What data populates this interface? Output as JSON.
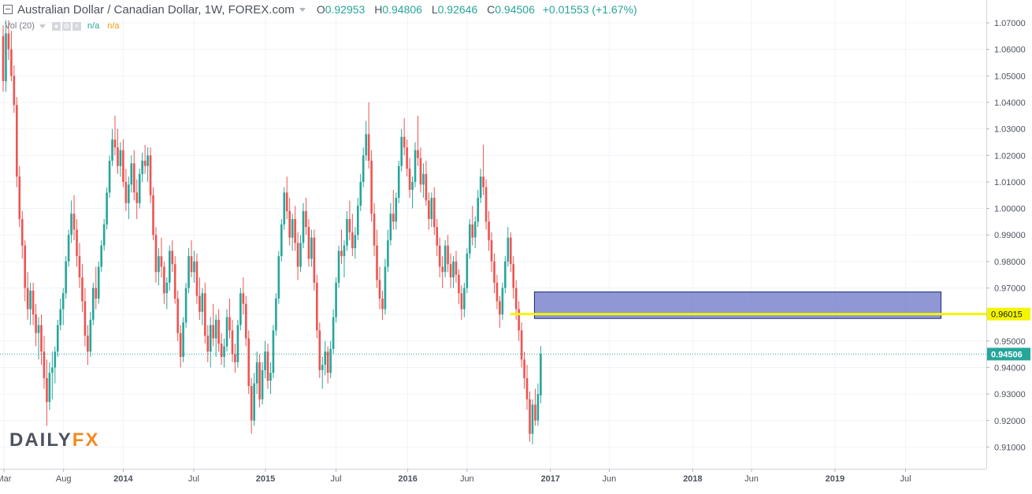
{
  "header": {
    "symbol_title": "Australian Dollar / Canadian Dollar, 1W, FOREX.com",
    "open_label": "O",
    "open_value": "0.92953",
    "high_label": "H",
    "high_value": "0.94806",
    "low_label": "L",
    "low_value": "0.92646",
    "close_label": "C",
    "close_value": "0.94506",
    "change": "+0.01553 (+1.67%)"
  },
  "volume_legend": {
    "label": "Vol (20)",
    "value1": "n/a",
    "value2": "n/a"
  },
  "watermark": "DAILYFX",
  "colors": {
    "up": "#26a69a",
    "down": "#ef5350",
    "support_line": "#f5f500",
    "zone_fill": "#6a74c6",
    "price_label": "#26a69a"
  },
  "chart_data": {
    "type": "candlestick",
    "title": "Australian Dollar / Canadian Dollar, 1W, FOREX.com",
    "ylim": [
      0.9,
      1.072
    ],
    "y_ticks": [
      "1.07000",
      "1.06000",
      "1.05000",
      "1.04000",
      "1.03000",
      "1.02000",
      "1.01000",
      "1.00000",
      "0.99000",
      "0.98000",
      "0.97000",
      "0.96000",
      "0.95000",
      "0.94000",
      "0.93000",
      "0.92000",
      "0.91000"
    ],
    "x_ticks": [
      "Mar",
      "Aug",
      "2014",
      "Jul",
      "2015",
      "Jul",
      "2016",
      "Jun",
      "2017",
      "Jun",
      "2018",
      "Jun",
      "2019",
      "Jul"
    ],
    "x_tick_dates": [
      "2013-03-01",
      "2013-08-01",
      "2014-01-01",
      "2014-07-01",
      "2015-01-01",
      "2015-07-01",
      "2016-01-01",
      "2016-06-01",
      "2017-01-01",
      "2017-06-01",
      "2018-01-01",
      "2018-06-01",
      "2019-01-01",
      "2019-07-01"
    ],
    "x_start": "2013-02-25",
    "grid": true,
    "candles": [
      [
        1.065,
        1.069,
        1.044,
        1.048
      ],
      [
        1.048,
        1.071,
        1.044,
        1.066
      ],
      [
        1.066,
        1.071,
        1.056,
        1.06
      ],
      [
        1.06,
        1.067,
        1.048,
        1.05
      ],
      [
        1.05,
        1.054,
        1.036,
        1.039
      ],
      [
        1.039,
        1.042,
        1.008,
        1.012
      ],
      [
        1.012,
        1.016,
        0.993,
        0.996
      ],
      [
        0.996,
        0.999,
        0.981,
        0.986
      ],
      [
        0.986,
        0.988,
        0.965,
        0.97
      ],
      [
        0.97,
        0.976,
        0.958,
        0.962
      ],
      [
        0.962,
        0.972,
        0.956,
        0.969
      ],
      [
        0.969,
        0.972,
        0.956,
        0.96
      ],
      [
        0.96,
        0.964,
        0.948,
        0.953
      ],
      [
        0.953,
        0.959,
        0.943,
        0.956
      ],
      [
        0.956,
        0.96,
        0.941,
        0.946
      ],
      [
        0.946,
        0.952,
        0.932,
        0.936
      ],
      [
        0.936,
        0.943,
        0.918,
        0.927
      ],
      [
        0.927,
        0.942,
        0.924,
        0.938
      ],
      [
        0.938,
        0.946,
        0.928,
        0.94
      ],
      [
        0.94,
        0.948,
        0.934,
        0.946
      ],
      [
        0.946,
        0.958,
        0.944,
        0.956
      ],
      [
        0.956,
        0.966,
        0.954,
        0.962
      ],
      [
        0.962,
        0.97,
        0.956,
        0.968
      ],
      [
        0.968,
        0.982,
        0.966,
        0.98
      ],
      [
        0.98,
        0.992,
        0.978,
        0.99
      ],
      [
        0.99,
        1.003,
        0.987,
        0.998
      ],
      [
        0.998,
        1.005,
        0.988,
        0.992
      ],
      [
        0.992,
        0.996,
        0.978,
        0.982
      ],
      [
        0.982,
        0.987,
        0.97,
        0.974
      ],
      [
        0.974,
        0.979,
        0.961,
        0.965
      ],
      [
        0.965,
        0.97,
        0.948,
        0.952
      ],
      [
        0.952,
        0.956,
        0.941,
        0.946
      ],
      [
        0.946,
        0.961,
        0.944,
        0.958
      ],
      [
        0.958,
        0.972,
        0.956,
        0.97
      ],
      [
        0.97,
        0.978,
        0.962,
        0.966
      ],
      [
        0.966,
        0.98,
        0.964,
        0.978
      ],
      [
        0.978,
        0.988,
        0.976,
        0.986
      ],
      [
        0.986,
        0.996,
        0.984,
        0.994
      ],
      [
        0.994,
        1.008,
        0.992,
        1.006
      ],
      [
        1.006,
        1.02,
        1.004,
        1.018
      ],
      [
        1.018,
        1.03,
        1.016,
        1.026
      ],
      [
        1.026,
        1.035,
        1.02,
        1.023
      ],
      [
        1.023,
        1.03,
        1.013,
        1.016
      ],
      [
        1.016,
        1.025,
        1.012,
        1.022
      ],
      [
        1.022,
        1.026,
        1.008,
        1.01
      ],
      [
        1.01,
        1.015,
        0.999,
        1.002
      ],
      [
        1.002,
        1.012,
        0.996,
        1.009
      ],
      [
        1.009,
        1.02,
        1.006,
        1.017
      ],
      [
        1.017,
        1.022,
        1.003,
        1.006
      ],
      [
        1.006,
        1.011,
        0.996,
        1.002
      ],
      [
        1.002,
        1.015,
        1.0,
        1.013
      ],
      [
        1.013,
        1.021,
        1.01,
        1.018
      ],
      [
        1.018,
        1.024,
        1.013,
        1.016
      ],
      [
        1.016,
        1.023,
        1.01,
        1.02
      ],
      [
        1.02,
        1.023,
        1.002,
        1.005
      ],
      [
        1.005,
        1.008,
        0.988,
        0.99
      ],
      [
        0.99,
        0.993,
        0.972,
        0.976
      ],
      [
        0.976,
        0.985,
        0.971,
        0.982
      ],
      [
        0.982,
        0.989,
        0.974,
        0.978
      ],
      [
        0.978,
        0.98,
        0.964,
        0.968
      ],
      [
        0.968,
        0.974,
        0.962,
        0.972
      ],
      [
        0.972,
        0.986,
        0.969,
        0.984
      ],
      [
        0.984,
        0.988,
        0.976,
        0.979
      ],
      [
        0.979,
        0.982,
        0.964,
        0.966
      ],
      [
        0.966,
        0.969,
        0.95,
        0.953
      ],
      [
        0.953,
        0.956,
        0.94,
        0.944
      ],
      [
        0.944,
        0.959,
        0.942,
        0.957
      ],
      [
        0.957,
        0.972,
        0.955,
        0.97
      ],
      [
        0.97,
        0.985,
        0.968,
        0.982
      ],
      [
        0.982,
        0.988,
        0.974,
        0.976
      ],
      [
        0.976,
        0.984,
        0.972,
        0.98
      ],
      [
        0.98,
        0.983,
        0.964,
        0.967
      ],
      [
        0.967,
        0.974,
        0.958,
        0.961
      ],
      [
        0.961,
        0.97,
        0.956,
        0.968
      ],
      [
        0.968,
        0.972,
        0.949,
        0.952
      ],
      [
        0.952,
        0.956,
        0.942,
        0.946
      ],
      [
        0.946,
        0.959,
        0.94,
        0.956
      ],
      [
        0.956,
        0.964,
        0.948,
        0.951
      ],
      [
        0.951,
        0.96,
        0.944,
        0.958
      ],
      [
        0.958,
        0.962,
        0.946,
        0.949
      ],
      [
        0.949,
        0.953,
        0.941,
        0.944
      ],
      [
        0.944,
        0.951,
        0.94,
        0.948
      ],
      [
        0.948,
        0.962,
        0.946,
        0.959
      ],
      [
        0.959,
        0.966,
        0.951,
        0.954
      ],
      [
        0.954,
        0.958,
        0.942,
        0.945
      ],
      [
        0.945,
        0.949,
        0.938,
        0.942
      ],
      [
        0.942,
        0.958,
        0.94,
        0.956
      ],
      [
        0.956,
        0.97,
        0.954,
        0.968
      ],
      [
        0.968,
        0.974,
        0.96,
        0.964
      ],
      [
        0.964,
        0.967,
        0.948,
        0.951
      ],
      [
        0.951,
        0.954,
        0.93,
        0.933
      ],
      [
        0.933,
        0.936,
        0.915,
        0.92
      ],
      [
        0.92,
        0.938,
        0.918,
        0.934
      ],
      [
        0.934,
        0.946,
        0.93,
        0.942
      ],
      [
        0.942,
        0.945,
        0.925,
        0.928
      ],
      [
        0.928,
        0.942,
        0.926,
        0.939
      ],
      [
        0.939,
        0.95,
        0.936,
        0.946
      ],
      [
        0.946,
        0.949,
        0.932,
        0.935
      ],
      [
        0.935,
        0.942,
        0.93,
        0.938
      ],
      [
        0.938,
        0.956,
        0.936,
        0.954
      ],
      [
        0.954,
        0.968,
        0.952,
        0.966
      ],
      [
        0.966,
        0.984,
        0.964,
        0.982
      ],
      [
        0.982,
        0.996,
        0.98,
        0.994
      ],
      [
        0.994,
        1.008,
        0.992,
        1.006
      ],
      [
        1.006,
        1.012,
        0.996,
        0.999
      ],
      [
        0.999,
        1.004,
        0.986,
        0.989
      ],
      [
        0.989,
        0.998,
        0.984,
        0.996
      ],
      [
        0.996,
        1.001,
        0.984,
        0.987
      ],
      [
        0.987,
        0.991,
        0.973,
        0.978
      ],
      [
        0.978,
        0.99,
        0.976,
        0.987
      ],
      [
        0.987,
        1.002,
        0.985,
        0.999
      ],
      [
        0.999,
        1.004,
        0.99,
        0.993
      ],
      [
        0.993,
        0.996,
        0.978,
        0.981
      ],
      [
        0.981,
        0.992,
        0.978,
        0.989
      ],
      [
        0.989,
        0.992,
        0.969,
        0.972
      ],
      [
        0.972,
        0.975,
        0.951,
        0.954
      ],
      [
        0.954,
        0.957,
        0.936,
        0.939
      ],
      [
        0.939,
        0.944,
        0.932,
        0.941
      ],
      [
        0.941,
        0.95,
        0.937,
        0.946
      ],
      [
        0.946,
        0.948,
        0.934,
        0.938
      ],
      [
        0.938,
        0.95,
        0.936,
        0.947
      ],
      [
        0.947,
        0.962,
        0.945,
        0.959
      ],
      [
        0.959,
        0.974,
        0.957,
        0.972
      ],
      [
        0.972,
        0.986,
        0.97,
        0.984
      ],
      [
        0.984,
        0.992,
        0.979,
        0.982
      ],
      [
        0.982,
        0.988,
        0.974,
        0.986
      ],
      [
        0.986,
        0.999,
        0.984,
        0.996
      ],
      [
        0.996,
        1.003,
        0.988,
        0.991
      ],
      [
        0.991,
        0.998,
        0.982,
        0.985
      ],
      [
        0.985,
        0.993,
        0.981,
        0.99
      ],
      [
        0.99,
        1.004,
        0.988,
        1.001
      ],
      [
        1.001,
        1.013,
        0.999,
        1.01
      ],
      [
        1.01,
        1.023,
        1.008,
        1.02
      ],
      [
        1.02,
        1.033,
        1.018,
        1.028
      ],
      [
        1.028,
        1.04,
        1.015,
        1.018
      ],
      [
        1.018,
        1.022,
        0.995,
        0.998
      ],
      [
        0.998,
        1.002,
        0.982,
        0.986
      ],
      [
        0.986,
        0.992,
        0.97,
        0.973
      ],
      [
        0.973,
        0.978,
        0.962,
        0.966
      ],
      [
        0.966,
        0.969,
        0.958,
        0.962
      ],
      [
        0.962,
        0.981,
        0.96,
        0.978
      ],
      [
        0.978,
        0.992,
        0.976,
        0.988
      ],
      [
        0.988,
        1.002,
        0.986,
        0.998
      ],
      [
        0.998,
        1.007,
        0.992,
        0.995
      ],
      [
        0.995,
        1.006,
        0.992,
        1.004
      ],
      [
        1.004,
        1.018,
        1.002,
        1.016
      ],
      [
        1.016,
        1.03,
        1.014,
        1.027
      ],
      [
        1.027,
        1.034,
        1.02,
        1.023
      ],
      [
        1.023,
        1.026,
        1.012,
        1.015
      ],
      [
        1.015,
        1.019,
        1.004,
        1.007
      ],
      [
        1.007,
        1.012,
        1.0,
        1.01
      ],
      [
        1.01,
        1.025,
        1.008,
        1.022
      ],
      [
        1.022,
        1.035,
        1.016,
        1.019
      ],
      [
        1.019,
        1.023,
        1.006,
        1.009
      ],
      [
        1.009,
        1.017,
        1.004,
        1.013
      ],
      [
        1.013,
        1.018,
        1.001,
        1.003
      ],
      [
        1.003,
        1.006,
        0.992,
        0.996
      ],
      [
        0.996,
        1.006,
        0.993,
        1.004
      ],
      [
        1.004,
        1.008,
        0.99,
        0.993
      ],
      [
        0.993,
        0.996,
        0.982,
        0.986
      ],
      [
        0.986,
        0.989,
        0.974,
        0.978
      ],
      [
        0.978,
        0.982,
        0.97,
        0.976
      ],
      [
        0.976,
        0.988,
        0.974,
        0.986
      ],
      [
        0.986,
        0.99,
        0.976,
        0.979
      ],
      [
        0.979,
        0.983,
        0.97,
        0.974
      ],
      [
        0.974,
        0.982,
        0.97,
        0.98
      ],
      [
        0.98,
        0.984,
        0.972,
        0.975
      ],
      [
        0.975,
        0.977,
        0.964,
        0.968
      ],
      [
        0.968,
        0.971,
        0.958,
        0.962
      ],
      [
        0.962,
        0.972,
        0.959,
        0.97
      ],
      [
        0.97,
        0.985,
        0.968,
        0.983
      ],
      [
        0.983,
        0.996,
        0.981,
        0.994
      ],
      [
        0.994,
        1.001,
        0.986,
        0.989
      ],
      [
        0.989,
        0.997,
        0.985,
        0.995
      ],
      [
        0.995,
        1.007,
        0.993,
        1.004
      ],
      [
        1.004,
        1.015,
        1.002,
        1.012
      ],
      [
        1.012,
        1.024,
        1.005,
        1.008
      ],
      [
        1.008,
        1.011,
        0.992,
        0.995
      ],
      [
        0.995,
        0.999,
        0.984,
        0.988
      ],
      [
        0.988,
        0.991,
        0.976,
        0.98
      ],
      [
        0.98,
        0.983,
        0.968,
        0.972
      ],
      [
        0.972,
        0.975,
        0.962,
        0.965
      ],
      [
        0.965,
        0.967,
        0.955,
        0.96
      ],
      [
        0.96,
        0.972,
        0.958,
        0.97
      ],
      [
        0.97,
        0.982,
        0.968,
        0.98
      ],
      [
        0.98,
        0.993,
        0.978,
        0.989
      ],
      [
        0.989,
        0.991,
        0.976,
        0.979
      ],
      [
        0.979,
        0.982,
        0.966,
        0.97
      ],
      [
        0.97,
        0.973,
        0.958,
        0.962
      ],
      [
        0.962,
        0.965,
        0.95,
        0.954
      ],
      [
        0.954,
        0.957,
        0.94,
        0.943
      ],
      [
        0.943,
        0.946,
        0.932,
        0.936
      ],
      [
        0.936,
        0.941,
        0.924,
        0.928
      ],
      [
        0.928,
        0.931,
        0.912,
        0.915
      ],
      [
        0.915,
        0.928,
        0.911,
        0.926
      ],
      [
        0.926,
        0.932,
        0.918,
        0.92
      ],
      [
        0.92,
        0.934,
        0.918,
        0.93
      ],
      [
        0.9295,
        0.9481,
        0.9265,
        0.9451
      ]
    ],
    "current_price": 0.94506,
    "support_level": 0.96015,
    "zone": {
      "y_top": 0.9685,
      "y_bottom": 0.9585,
      "x_start": "2016-11-21",
      "x_end": "2019-09-30"
    },
    "price_labels": {
      "support": "0.96015",
      "current": "0.94506"
    }
  }
}
